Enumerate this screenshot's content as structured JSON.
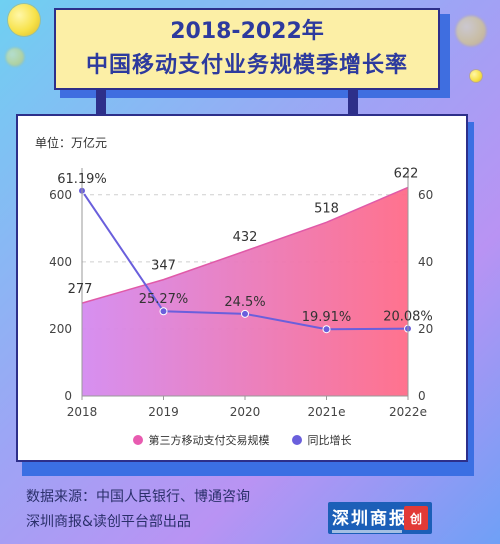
{
  "title": {
    "line1": "2018-2022年",
    "line2": "中国移动支付业务规模季增长率"
  },
  "unit_label": "单位：万亿元",
  "legend": {
    "series1": "第三方移动支付交易规模",
    "series2": "同比增长"
  },
  "footer": {
    "source": "数据来源：中国人民银行、博通咨询",
    "producer": "深圳商报&读创平台部出品"
  },
  "logo": {
    "text": "深圳商报",
    "mark": "创"
  },
  "colors": {
    "area_start": "#d48af0",
    "area_end": "#ff6b88",
    "line": "#6a5fdc",
    "title_text": "#2d3a9e"
  },
  "chart_data": {
    "type": "area",
    "categories": [
      "2018",
      "2019",
      "2020",
      "2021e",
      "2022e"
    ],
    "series": [
      {
        "name": "第三方移动支付交易规模",
        "type": "area",
        "axis": "left",
        "values": [
          277,
          347,
          432,
          518,
          622
        ],
        "labels": [
          "277",
          "347",
          "432",
          "518",
          "622"
        ]
      },
      {
        "name": "同比增长",
        "type": "line",
        "axis": "right",
        "values": [
          61.19,
          25.27,
          24.5,
          19.91,
          20.08
        ],
        "labels": [
          "61.19%",
          "25.27%",
          "24.5%",
          "19.91%",
          "20.08%"
        ]
      }
    ],
    "y_left": {
      "ticks": [
        0,
        200,
        400,
        600
      ],
      "ylim": [
        0,
        650
      ]
    },
    "y_right": {
      "ticks": [
        0,
        20,
        40,
        60
      ],
      "ylim": [
        0,
        65
      ]
    },
    "grid": true,
    "legend_position": "bottom"
  }
}
